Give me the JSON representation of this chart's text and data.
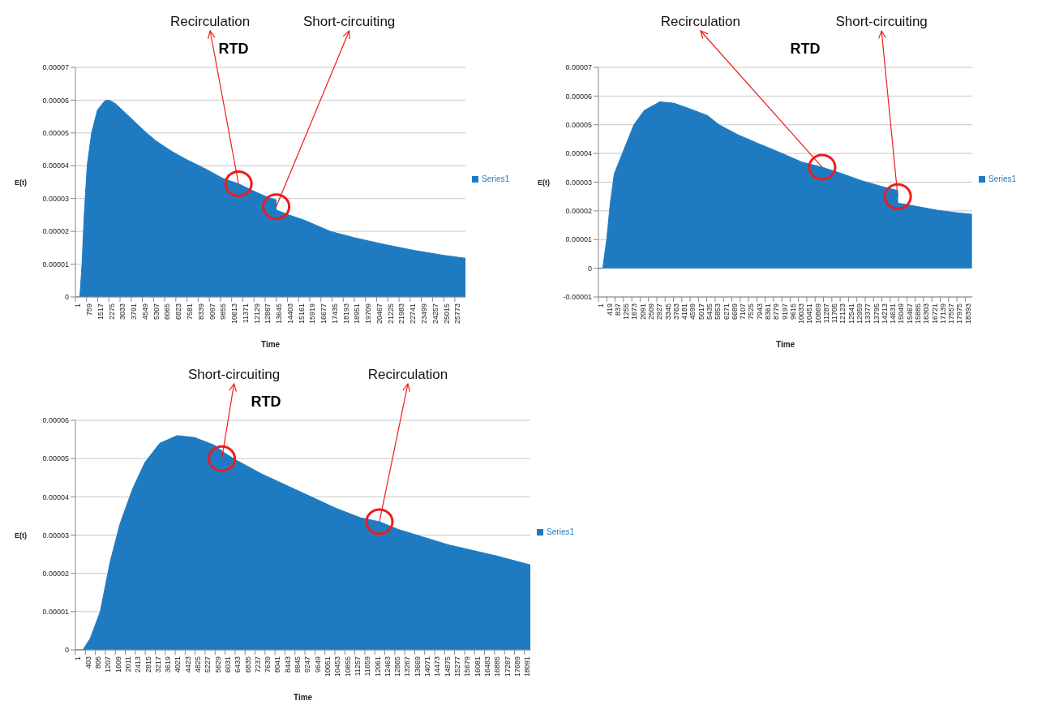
{
  "chart_data": [
    {
      "type": "area",
      "title": "RTD",
      "xlabel": "Time",
      "ylabel": "E(t)",
      "legend": "right",
      "grid": "y",
      "x": [
        1,
        300,
        450,
        600,
        800,
        1100,
        1500,
        2000,
        2280,
        2700,
        3300,
        4000,
        4830,
        5500,
        6500,
        7500,
        8850,
        10000,
        11080,
        12000,
        13000,
        13630,
        13640,
        14500,
        15500,
        17320,
        19000,
        21000,
        23000,
        25000,
        26500
      ],
      "series": [
        {
          "name": "Series1",
          "color": "#1f7bc1",
          "values": [
            0,
            0,
            1e-05,
            2.5e-05,
            4e-05,
            5e-05,
            5.7e-05,
            5.98e-05,
            6e-05,
            5.9e-05,
            5.65e-05,
            5.35e-05,
            5e-05,
            4.75e-05,
            4.45e-05,
            4.2e-05,
            3.9e-05,
            3.62e-05,
            3.45e-05,
            3.25e-05,
            3.05e-05,
            2.96e-05,
            2.65e-05,
            2.5e-05,
            2.35e-05,
            2e-05,
            1.8e-05,
            1.6e-05,
            1.42e-05,
            1.27e-05,
            1.18e-05
          ]
        }
      ],
      "xlim": [
        1,
        26500
      ],
      "xticks": [
        1,
        759,
        1517,
        2275,
        3033,
        3791,
        4549,
        5307,
        6065,
        6823,
        7581,
        8339,
        9097,
        9855,
        10613,
        11371,
        12129,
        12887,
        13645,
        14403,
        15161,
        15919,
        16677,
        17435,
        18193,
        18951,
        19709,
        20467,
        21225,
        21983,
        22741,
        23499,
        24257,
        25015,
        25773
      ],
      "ylim": [
        0,
        7e-05
      ],
      "yticks": [
        {
          "value": 0,
          "label": "0"
        },
        {
          "value": 1e-05,
          "label": "0.00001"
        },
        {
          "value": 2e-05,
          "label": "0.00002"
        },
        {
          "value": 3e-05,
          "label": "0.00003"
        },
        {
          "value": 4e-05,
          "label": "0.00004"
        },
        {
          "value": 5e-05,
          "label": "0.00005"
        },
        {
          "value": 6e-05,
          "label": "0.00006"
        },
        {
          "value": 7e-05,
          "label": "0.00007"
        }
      ],
      "annotations": [
        {
          "text": "Recirculation",
          "x": 11080,
          "y": 3.45e-05
        },
        {
          "text": "Short-circuiting",
          "x": 13640,
          "y": 2.75e-05
        }
      ]
    },
    {
      "type": "area",
      "title": "RTD",
      "xlabel": "Time",
      "ylabel": "E(t)",
      "legend": "right",
      "grid": "y",
      "x": [
        1,
        220,
        415,
        600,
        800,
        1200,
        1780,
        2300,
        3080,
        3800,
        4600,
        5470,
        6050,
        7000,
        8000,
        9220,
        10200,
        11220,
        12200,
        13200,
        14200,
        15000,
        15010,
        16000,
        17000,
        18000,
        18730
      ],
      "series": [
        {
          "name": "Series1",
          "color": "#1f7bc1",
          "values": [
            0,
            0,
            1e-05,
            2.3e-05,
            3.3e-05,
            4e-05,
            5e-05,
            5.5e-05,
            5.8e-05,
            5.75e-05,
            5.55e-05,
            5.32e-05,
            5e-05,
            4.65e-05,
            4.35e-05,
            4e-05,
            3.7e-05,
            3.52e-05,
            3.3e-05,
            3.05e-05,
            2.85e-05,
            2.71e-05,
            2.27e-05,
            2.15e-05,
            2.02e-05,
            1.93e-05,
            1.88e-05
          ]
        }
      ],
      "xlim": [
        1,
        18750
      ],
      "xticks": [
        1,
        419,
        837,
        1255,
        1673,
        2091,
        2509,
        2927,
        3345,
        3763,
        4181,
        4599,
        5017,
        5435,
        5853,
        6271,
        6689,
        7107,
        7525,
        7943,
        8361,
        8779,
        9197,
        9615,
        10033,
        10451,
        10869,
        11287,
        11705,
        12123,
        12541,
        12959,
        13377,
        13795,
        14213,
        14631,
        15049,
        15467,
        15885,
        16303,
        16721,
        17139,
        17557,
        17975,
        18393
      ],
      "ylim": [
        -1e-05,
        7e-05
      ],
      "yticks": [
        {
          "value": -1e-05,
          "label": "-0.00001"
        },
        {
          "value": 0,
          "label": "0"
        },
        {
          "value": 1e-05,
          "label": "0.00001"
        },
        {
          "value": 2e-05,
          "label": "0.00002"
        },
        {
          "value": 3e-05,
          "label": "0.00003"
        },
        {
          "value": 4e-05,
          "label": "0.00004"
        },
        {
          "value": 5e-05,
          "label": "0.00005"
        },
        {
          "value": 6e-05,
          "label": "0.00006"
        },
        {
          "value": 7e-05,
          "label": "0.00007"
        }
      ],
      "annotations": [
        {
          "text": "Recirculation",
          "x": 11220,
          "y": 3.52e-05
        },
        {
          "text": "Short-circuiting",
          "x": 15010,
          "y": 2.5e-05
        }
      ]
    },
    {
      "type": "area",
      "title": "RTD",
      "xlabel": "Time",
      "ylabel": "E(t)",
      "legend": "right",
      "grid": "y",
      "x": [
        1,
        300,
        600,
        1000,
        1400,
        1800,
        2300,
        2800,
        3400,
        4100,
        4800,
        5600,
        6000,
        6500,
        7500,
        8500,
        9500,
        10500,
        11500,
        12250,
        13000,
        14000,
        15000,
        16000,
        17000,
        18330
      ],
      "series": [
        {
          "name": "Series1",
          "color": "#1f7bc1",
          "values": [
            0,
            0,
            3e-06,
            1e-05,
            2.3e-05,
            3.3e-05,
            4.2e-05,
            4.9e-05,
            5.4e-05,
            5.6e-05,
            5.55e-05,
            5.35e-05,
            5.15e-05,
            4.95e-05,
            4.6e-05,
            4.3e-05,
            4e-05,
            3.7e-05,
            3.45e-05,
            3.35e-05,
            3.15e-05,
            2.95e-05,
            2.75e-05,
            2.6e-05,
            2.45e-05,
            2.22e-05
          ]
        }
      ],
      "xlim": [
        1,
        18330
      ],
      "xticks": [
        1,
        403,
        805,
        1207,
        1609,
        2011,
        2413,
        2815,
        3217,
        3619,
        4021,
        4423,
        4825,
        5227,
        5629,
        6031,
        6433,
        6835,
        7237,
        7639,
        8041,
        8443,
        8845,
        9247,
        9649,
        10051,
        10453,
        10855,
        11257,
        11659,
        12061,
        12463,
        12865,
        13267,
        13669,
        14071,
        14473,
        14875,
        15277,
        15679,
        16081,
        16483,
        16885,
        17287,
        17689,
        18091
      ],
      "ylim": [
        0,
        6e-05
      ],
      "yticks": [
        {
          "value": 0,
          "label": "0"
        },
        {
          "value": 1e-05,
          "label": "0.00001"
        },
        {
          "value": 2e-05,
          "label": "0.00002"
        },
        {
          "value": 3e-05,
          "label": "0.00003"
        },
        {
          "value": 4e-05,
          "label": "0.00004"
        },
        {
          "value": 5e-05,
          "label": "0.00005"
        },
        {
          "value": 6e-05,
          "label": "0.00006"
        }
      ],
      "annotations": [
        {
          "text": "Short-circuiting",
          "x": 5900,
          "y": 5e-05
        },
        {
          "text": "Recirculation",
          "x": 12250,
          "y": 3.35e-05
        }
      ]
    }
  ]
}
